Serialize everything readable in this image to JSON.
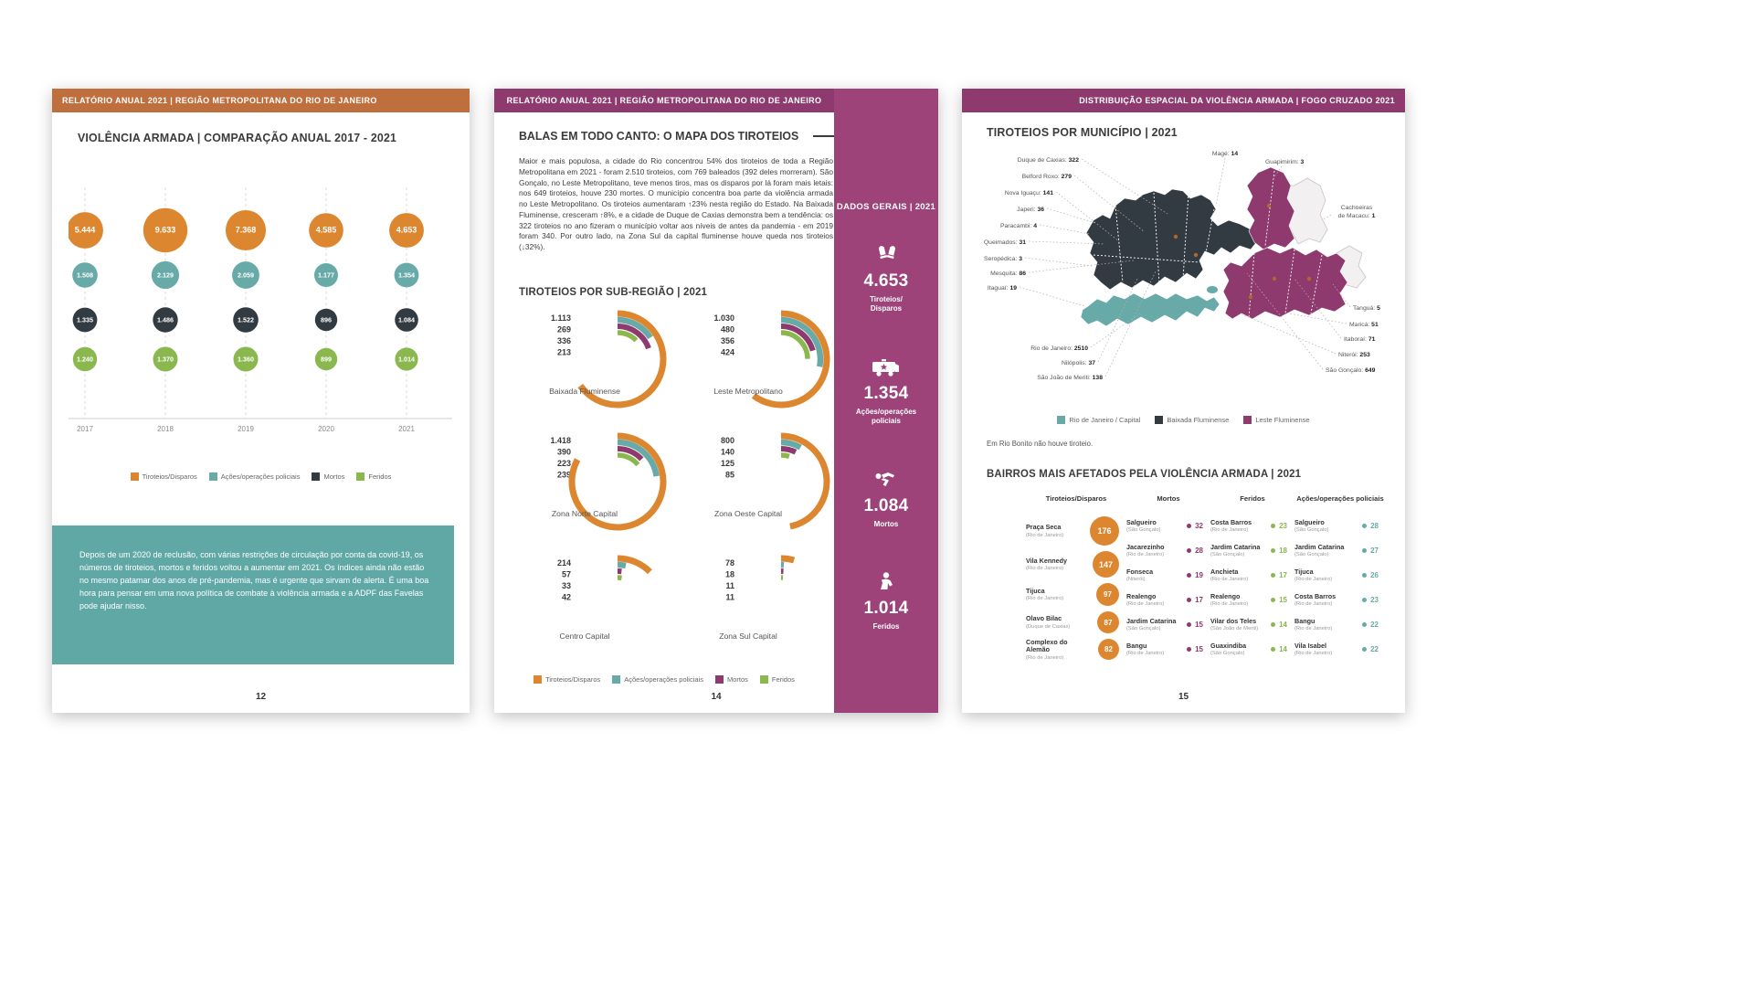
{
  "colors": {
    "orange": "#dd8630",
    "teal": "#68aaa8",
    "dark": "#333b42",
    "green": "#8ab84f",
    "purple": "#8e3a6e",
    "sidebar_purple": "#9d4379",
    "header_orange": "#bf6f3d",
    "note_teal": "#5fa8a5"
  },
  "page12": {
    "header": "RELATÓRIO ANUAL 2021 | REGIÃO METROPOLITANA DO RIO DE JANEIRO",
    "title": "VIOLÊNCIA ARMADA | COMPARAÇÃO ANUAL 2017 - 2021",
    "chart_data": {
      "type": "bubble-matrix",
      "categories": [
        "2017",
        "2018",
        "2019",
        "2020",
        "2021"
      ],
      "series": [
        {
          "name": "Tiroteios/Disparos",
          "color": "#dd8630",
          "values": [
            5444,
            9633,
            7368,
            4585,
            4653
          ],
          "labels": [
            "5.444",
            "9.633",
            "7.368",
            "4.585",
            "4.653"
          ]
        },
        {
          "name": "Ações/operações policiais",
          "color": "#68aaa8",
          "values": [
            1508,
            2129,
            2059,
            1177,
            1354
          ],
          "labels": [
            "1.508",
            "2.129",
            "2.059",
            "1.177",
            "1.354"
          ]
        },
        {
          "name": "Mortos",
          "color": "#333b42",
          "values": [
            1335,
            1486,
            1522,
            896,
            1084
          ],
          "labels": [
            "1.335",
            "1.486",
            "1.522",
            "896",
            "1.084"
          ]
        },
        {
          "name": "Feridos",
          "color": "#8ab84f",
          "values": [
            1240,
            1370,
            1360,
            899,
            1014
          ],
          "labels": [
            "1.240",
            "1.370",
            "1.360",
            "899",
            "1.014"
          ]
        }
      ]
    },
    "legend": [
      {
        "label": "Tiroteios/Disparos",
        "color": "#dd8630"
      },
      {
        "label": "Ações/operações policiais",
        "color": "#68aaa8"
      },
      {
        "label": "Mortos",
        "color": "#333b42"
      },
      {
        "label": "Feridos",
        "color": "#8ab84f"
      }
    ],
    "note": "Depois de um 2020 de reclusão, com várias restrições de circulação por conta da covid-19, os números de tiroteios, mortos e feridos voltou a aumentar em 2021. Os índices ainda não estão no mesmo patamar dos anos de pré-pandemia, mas é urgente que sirvam de alerta. É uma boa hora para pensar em uma nova política de combate à violência armada e a ADPF das Favelas pode ajudar nisso.",
    "page_number": "12"
  },
  "page14": {
    "header": "RELATÓRIO ANUAL 2021 | REGIÃO METROPOLITANA DO RIO DE JANEIRO",
    "title": "BALAS EM TODO CANTO: O MAPA DOS TIROTEIOS",
    "body": "Maior e mais populosa, a cidade do Rio concentrou 54% dos tiroteios de toda a Região Metropolitana em 2021 - foram 2.510 tiroteios, com 769 baleados (392 deles morreram). São Gonçalo, no Leste Metropolitano, teve menos tiros, mas os disparos por lá foram mais letais: nos 649 tiroteios, houve 230 mortes. O município concentra boa parte da violência armada no Leste Metropolitano. Os tiroteios aumentaram ↑23% nesta região do Estado. Na Baixada Fluminense, cresceram ↑8%, e a cidade de Duque de Caxias demonstra bem a tendência: os 322 tiroteios no ano fizeram o município voltar aos níveis de antes da pandemia - em 2019 foram 340. Por outro lado, na Zona Sul da capital fluminense houve queda nos tiroteios (↓32%).",
    "section_title": "TIROTEIOS POR SUB-REGIÃO | 2021",
    "chart_data": {
      "type": "radial-bars",
      "series_names": [
        "Tiroteios/Disparos",
        "Ações/operações policiais",
        "Mortos",
        "Feridos"
      ],
      "series_colors": [
        "#dd8630",
        "#68aaa8",
        "#8e3a6e",
        "#8ab84f"
      ],
      "groups": [
        {
          "label": "Baixada Fluminense",
          "values": [
            1113,
            269,
            336,
            213
          ],
          "labels": [
            "1.113",
            "269",
            "336",
            "213"
          ]
        },
        {
          "label": "Leste Metropolitano",
          "values": [
            1030,
            480,
            356,
            424
          ],
          "labels": [
            "1.030",
            "480",
            "356",
            "424"
          ]
        },
        {
          "label": "Zona Norte Capital",
          "values": [
            1418,
            390,
            223,
            239
          ],
          "labels": [
            "1.418",
            "390",
            "223",
            "239"
          ]
        },
        {
          "label": "Zona Oeste Capital",
          "values": [
            800,
            140,
            125,
            85
          ],
          "labels": [
            "800",
            "140",
            "125",
            "85"
          ]
        },
        {
          "label": "Centro Capital",
          "values": [
            214,
            57,
            33,
            42
          ],
          "labels": [
            "214",
            "57",
            "33",
            "42"
          ]
        },
        {
          "label": "Zona Sul Capital",
          "values": [
            78,
            18,
            11,
            11
          ],
          "labels": [
            "78",
            "18",
            "11",
            "11"
          ]
        }
      ]
    },
    "legend": [
      {
        "label": "Tiroteios/Disparos",
        "color": "#dd8630"
      },
      {
        "label": "Ações/operações policiais",
        "color": "#68aaa8"
      },
      {
        "label": "Mortos",
        "color": "#8e3a6e"
      },
      {
        "label": "Feridos",
        "color": "#8ab84f"
      }
    ],
    "sidebar": {
      "title": "DADOS GERAIS | 2021",
      "stats": [
        {
          "icon": "bullets-icon",
          "value": "4.653",
          "label": "Tiroteios/\nDisparos"
        },
        {
          "icon": "police-van-icon",
          "value": "1.354",
          "label": "Ações/operações\npoliciais"
        },
        {
          "icon": "fallen-person-icon",
          "value": "1.084",
          "label": "Mortos"
        },
        {
          "icon": "injured-person-icon",
          "value": "1.014",
          "label": "Feridos"
        }
      ]
    },
    "page_number": "14"
  },
  "page15": {
    "header": "DISTRIBUIÇÃO ESPACIAL DA VIOLÊNCIA ARMADA | FOGO CRUZADO 2021",
    "title": "TIROTEIOS POR MUNICÍPIO | 2021",
    "map": {
      "municipalities": [
        {
          "name": "Duque de Caxias",
          "value": "322"
        },
        {
          "name": "Belford Roxo",
          "value": "279"
        },
        {
          "name": "Nova Iguaçu",
          "value": "141"
        },
        {
          "name": "Japeri",
          "value": "36"
        },
        {
          "name": "Paracambi",
          "value": "4"
        },
        {
          "name": "Queimados",
          "value": "31"
        },
        {
          "name": "Seropédica",
          "value": "3"
        },
        {
          "name": "Mesquita",
          "value": "86"
        },
        {
          "name": "Itaguaí",
          "value": "19"
        },
        {
          "name": "Magé",
          "value": "14"
        },
        {
          "name": "Guapimirim",
          "value": "3"
        },
        {
          "name": "Cachoeiras de Macacu",
          "value": "1"
        },
        {
          "name": "Tanguá",
          "value": "5"
        },
        {
          "name": "Maricá",
          "value": "51"
        },
        {
          "name": "Itaboraí",
          "value": "71"
        },
        {
          "name": "Niterói",
          "value": "253"
        },
        {
          "name": "São Gonçalo",
          "value": "649"
        },
        {
          "name": "Rio de Janeiro",
          "value": "2510"
        },
        {
          "name": "Nilópolis",
          "value": "37"
        },
        {
          "name": "São João de Meriti",
          "value": "138"
        }
      ],
      "legend": [
        {
          "label": "Rio de Janeiro / Capital",
          "color": "#68aaa8"
        },
        {
          "label": "Baixada Fluminense",
          "color": "#333b42"
        },
        {
          "label": "Leste Fluminense",
          "color": "#8e3a6e"
        }
      ],
      "note": "Em Rio Bonito não houve tiroteio."
    },
    "bairros": {
      "title": "BAIRROS MAIS AFETADOS PELA VIOLÊNCIA ARMADA | 2021",
      "columns": [
        {
          "header": "Tiroteios/Disparos",
          "style": "bubble",
          "color": "#dd8630",
          "items": [
            {
              "name": "Praça Seca",
              "sub": "(Rio de Janeiro)",
              "value": 176
            },
            {
              "name": "Vila Kennedy",
              "sub": "(Rio de Janeiro)",
              "value": 147
            },
            {
              "name": "Tijuca",
              "sub": "(Rio de Janeiro)",
              "value": 97
            },
            {
              "name": "Olavo Bilac",
              "sub": "(Duque de Caxias)",
              "value": 87
            },
            {
              "name": "Complexo do Alemão",
              "sub": "(Rio de Janeiro)",
              "value": 82
            }
          ]
        },
        {
          "header": "Mortos",
          "style": "dot",
          "color": "#8e3a6e",
          "items": [
            {
              "name": "Salgueiro",
              "sub": "(São Gonçalo)",
              "value": 32
            },
            {
              "name": "Jacarezinho",
              "sub": "(Rio de Janeiro)",
              "value": 28
            },
            {
              "name": "Fonseca",
              "sub": "(Niterói)",
              "value": 19
            },
            {
              "name": "Realengo",
              "sub": "(Rio de Janeiro)",
              "value": 17
            },
            {
              "name": "Jardim Catarina",
              "sub": "(São Gonçalo)",
              "value": 15
            },
            {
              "name": "Bangu",
              "sub": "(Rio de Janeiro)",
              "value": 15
            }
          ]
        },
        {
          "header": "Feridos",
          "style": "dot",
          "color": "#8ab84f",
          "items": [
            {
              "name": "Costa Barros",
              "sub": "(Rio de Janeiro)",
              "value": 23
            },
            {
              "name": "Jardim Catarina",
              "sub": "(São Gonçalo)",
              "value": 18
            },
            {
              "name": "Anchieta",
              "sub": "(Rio de Janeiro)",
              "value": 17
            },
            {
              "name": "Realengo",
              "sub": "(Rio de Janeiro)",
              "value": 15
            },
            {
              "name": "Vilar dos Teles",
              "sub": "(São João de Meriti)",
              "value": 14
            },
            {
              "name": "Guaxindiba",
              "sub": "(São Gonçalo)",
              "value": 14
            }
          ]
        },
        {
          "header": "Ações/operações policiais",
          "style": "dot",
          "color": "#68aaa8",
          "items": [
            {
              "name": "Salgueiro",
              "sub": "(São Gonçalo)",
              "value": 28
            },
            {
              "name": "Jardim Catarina",
              "sub": "(São Gonçalo)",
              "value": 27
            },
            {
              "name": "Tijuca",
              "sub": "(Rio de Janeiro)",
              "value": 26
            },
            {
              "name": "Costa Barros",
              "sub": "(Rio de Janeiro)",
              "value": 23
            },
            {
              "name": "Bangu",
              "sub": "(Rio de Janeiro)",
              "value": 22
            },
            {
              "name": "Vila Isabel",
              "sub": "(Rio de Janeiro)",
              "value": 22
            }
          ]
        }
      ]
    },
    "page_number": "15"
  }
}
